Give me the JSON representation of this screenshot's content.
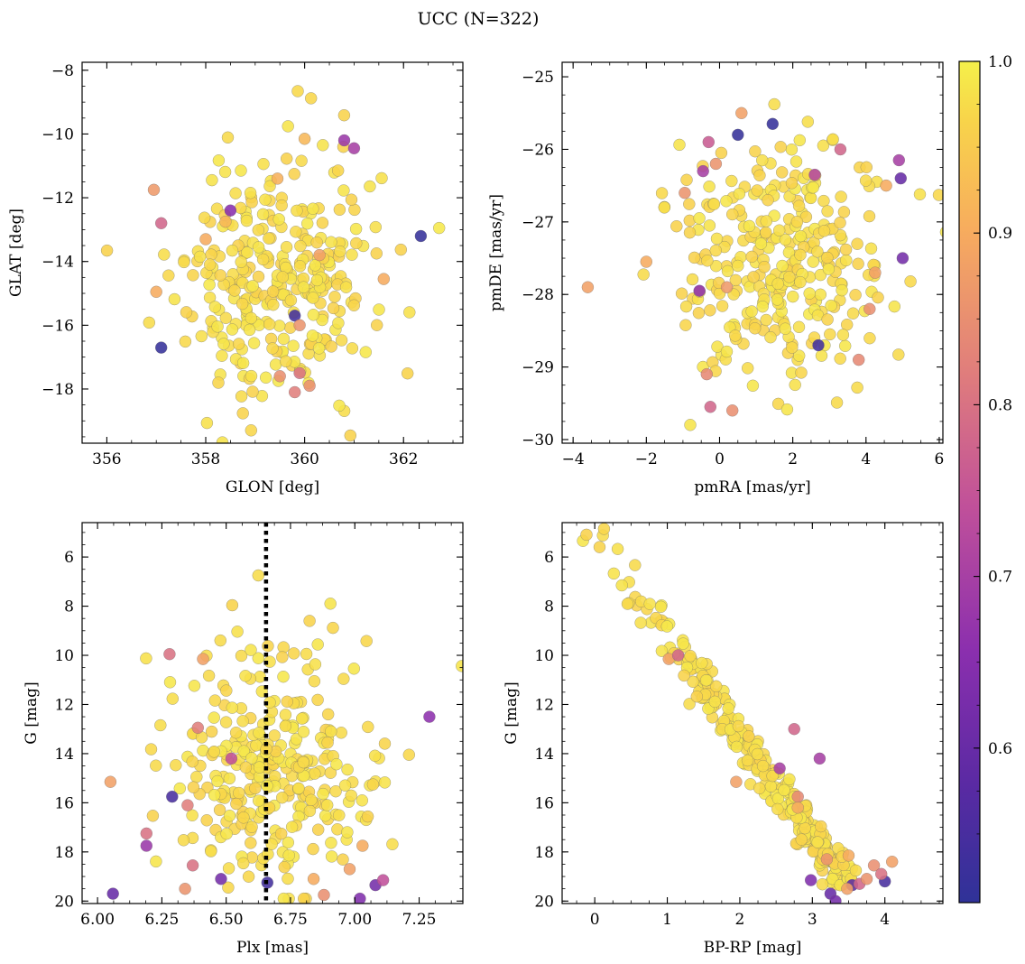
{
  "figure": {
    "title": "UCC (N=322)"
  },
  "colorbar": {
    "colormap": "plasma",
    "range": [
      0.51,
      1.0
    ],
    "ticks": [
      0.6,
      0.7,
      0.8,
      0.9,
      1.0
    ],
    "tick_labels": [
      "0.6",
      "0.7",
      "0.8",
      "0.9",
      "1.0"
    ]
  },
  "chart_data": [
    {
      "type": "scatter",
      "id": "glon-glat",
      "xlabel": "GLON [deg]",
      "ylabel": "GLAT [deg]",
      "xlim": [
        355.5,
        363.2
      ],
      "ylim": [
        -19.7,
        -7.75
      ],
      "y_inverted": false,
      "xticks": [
        356,
        358,
        360,
        362
      ],
      "yticks": [
        -18,
        -16,
        -14,
        -12,
        -10,
        -8
      ],
      "highlight_points": [
        {
          "x": 362.35,
          "y": -13.2,
          "c": 0.52
        },
        {
          "x": 357.1,
          "y": -16.7,
          "c": 0.52
        },
        {
          "x": 359.8,
          "y": -15.7,
          "c": 0.54
        },
        {
          "x": 358.5,
          "y": -12.4,
          "c": 0.65
        },
        {
          "x": 360.8,
          "y": -10.2,
          "c": 0.68
        },
        {
          "x": 361.0,
          "y": -10.45,
          "c": 0.7
        },
        {
          "x": 357.1,
          "y": -12.8,
          "c": 0.78
        },
        {
          "x": 356.95,
          "y": -11.75,
          "c": 0.87
        },
        {
          "x": 357.0,
          "y": -14.95,
          "c": 0.9
        },
        {
          "x": 358.4,
          "y": -12.75,
          "c": 0.92
        },
        {
          "x": 359.45,
          "y": -11.4,
          "c": 0.91
        },
        {
          "x": 360.0,
          "y": -10.15,
          "c": 0.92
        },
        {
          "x": 361.6,
          "y": -14.55,
          "c": 0.9
        },
        {
          "x": 359.5,
          "y": -17.6,
          "c": 0.85
        },
        {
          "x": 359.8,
          "y": -18.1,
          "c": 0.82
        },
        {
          "x": 360.1,
          "y": -17.9,
          "c": 0.85
        },
        {
          "x": 359.9,
          "y": -17.5,
          "c": 0.8
        },
        {
          "x": 360.3,
          "y": -13.8,
          "c": 0.88
        },
        {
          "x": 358.0,
          "y": -13.3,
          "c": 0.9
        },
        {
          "x": 359.9,
          "y": -16.0,
          "c": 0.86
        }
      ],
      "background_points": {
        "count": 302,
        "x_center": 359.5,
        "x_sd": 1.0,
        "y_center": -14.5,
        "y_sd": 2.0,
        "c": 0.99
      }
    },
    {
      "type": "scatter",
      "id": "pmra-pmde",
      "xlabel": "pmRA [mas/yr]",
      "ylabel": "pmDE [mas/yr]",
      "xlim": [
        -4.3,
        6.1
      ],
      "ylim": [
        -30.05,
        -24.8
      ],
      "y_inverted": false,
      "xticks": [
        -4,
        -2,
        0,
        2,
        4,
        6
      ],
      "yticks": [
        -30,
        -29,
        -28,
        -27,
        -26,
        -25
      ],
      "highlight_points": [
        {
          "x": 1.45,
          "y": -25.65,
          "c": 0.52
        },
        {
          "x": 0.5,
          "y": -25.8,
          "c": 0.52
        },
        {
          "x": 2.7,
          "y": -28.7,
          "c": 0.54
        },
        {
          "x": 4.95,
          "y": -26.4,
          "c": 0.6
        },
        {
          "x": 5.0,
          "y": -27.5,
          "c": 0.62
        },
        {
          "x": -0.55,
          "y": -27.95,
          "c": 0.66
        },
        {
          "x": -0.45,
          "y": -26.3,
          "c": 0.7
        },
        {
          "x": 2.6,
          "y": -26.35,
          "c": 0.72
        },
        {
          "x": 4.9,
          "y": -26.15,
          "c": 0.7
        },
        {
          "x": -0.3,
          "y": -25.9,
          "c": 0.76
        },
        {
          "x": 3.3,
          "y": -26.0,
          "c": 0.78
        },
        {
          "x": -0.25,
          "y": -29.55,
          "c": 0.78
        },
        {
          "x": 0.35,
          "y": -29.6,
          "c": 0.85
        },
        {
          "x": -0.35,
          "y": -29.1,
          "c": 0.84
        },
        {
          "x": -3.6,
          "y": -27.9,
          "c": 0.88
        },
        {
          "x": -2.0,
          "y": -27.55,
          "c": 0.9
        },
        {
          "x": -0.95,
          "y": -26.6,
          "c": 0.86
        },
        {
          "x": -0.1,
          "y": -26.2,
          "c": 0.86
        },
        {
          "x": 4.1,
          "y": -28.2,
          "c": 0.85
        },
        {
          "x": 3.8,
          "y": -28.9,
          "c": 0.84
        },
        {
          "x": 0.6,
          "y": -25.5,
          "c": 0.88
        },
        {
          "x": 4.55,
          "y": -26.5,
          "c": 0.9
        },
        {
          "x": 4.25,
          "y": -27.7,
          "c": 0.88
        },
        {
          "x": 0.2,
          "y": -27.9,
          "c": 0.87
        }
      ],
      "background_points": {
        "count": 298,
        "x_center": 1.8,
        "x_sd": 1.45,
        "y_center": -27.5,
        "y_sd": 0.85,
        "c": 0.99
      }
    },
    {
      "type": "scatter",
      "id": "plx-g",
      "xlabel": "Plx [mas]",
      "ylabel": "G [mag]",
      "xlim": [
        5.94,
        7.42
      ],
      "ylim": [
        20.1,
        4.6
      ],
      "y_inverted": true,
      "xticks": [
        6.0,
        6.25,
        6.5,
        6.75,
        7.0,
        7.25
      ],
      "xtick_labels": [
        "6.00",
        "6.25",
        "6.50",
        "6.75",
        "7.00",
        "7.25"
      ],
      "yticks": [
        6,
        8,
        10,
        12,
        14,
        16,
        18,
        20
      ],
      "vline": {
        "x": 6.655,
        "style": "dotted"
      },
      "highlight_points": [
        {
          "x": 6.06,
          "y": 19.7,
          "c": 0.6
        },
        {
          "x": 6.19,
          "y": 17.75,
          "c": 0.68
        },
        {
          "x": 7.29,
          "y": 12.5,
          "c": 0.66
        },
        {
          "x": 6.48,
          "y": 19.1,
          "c": 0.62
        },
        {
          "x": 6.66,
          "y": 19.25,
          "c": 0.54
        },
        {
          "x": 7.08,
          "y": 19.35,
          "c": 0.62
        },
        {
          "x": 7.02,
          "y": 19.9,
          "c": 0.64
        },
        {
          "x": 7.11,
          "y": 19.15,
          "c": 0.74
        },
        {
          "x": 6.28,
          "y": 9.95,
          "c": 0.8
        },
        {
          "x": 6.41,
          "y": 10.15,
          "c": 0.88
        },
        {
          "x": 6.05,
          "y": 15.15,
          "c": 0.88
        },
        {
          "x": 6.19,
          "y": 17.25,
          "c": 0.8
        },
        {
          "x": 6.34,
          "y": 19.5,
          "c": 0.86
        },
        {
          "x": 6.37,
          "y": 18.55,
          "c": 0.8
        },
        {
          "x": 6.88,
          "y": 19.75,
          "c": 0.85
        },
        {
          "x": 6.84,
          "y": 19.1,
          "c": 0.9
        },
        {
          "x": 7.03,
          "y": 17.75,
          "c": 0.9
        },
        {
          "x": 6.39,
          "y": 12.95,
          "c": 0.82
        },
        {
          "x": 6.29,
          "y": 15.75,
          "c": 0.55
        },
        {
          "x": 6.35,
          "y": 16.1,
          "c": 0.82
        },
        {
          "x": 6.52,
          "y": 14.2,
          "c": 0.74
        },
        {
          "x": 6.98,
          "y": 18.7,
          "c": 0.88
        }
      ],
      "background_points": {
        "count": 300,
        "x_center": 6.67,
        "x_sd": 0.2,
        "y_center": 15.0,
        "y_sd": 2.0,
        "c": 0.99
      }
    },
    {
      "type": "scatter",
      "id": "bprp-g",
      "xlabel": "BP-RP [mag]",
      "ylabel": "G [mag]",
      "xlim": [
        -0.45,
        4.8
      ],
      "ylim": [
        20.1,
        4.6
      ],
      "y_inverted": true,
      "xticks": [
        0,
        1,
        2,
        3,
        4
      ],
      "yticks": [
        6,
        8,
        10,
        12,
        14,
        16,
        18,
        20
      ],
      "highlight_points": [
        {
          "x": 3.25,
          "y": 19.7,
          "c": 0.6
        },
        {
          "x": 2.98,
          "y": 19.15,
          "c": 0.64
        },
        {
          "x": 3.32,
          "y": 20.0,
          "c": 0.62
        },
        {
          "x": 3.55,
          "y": 19.35,
          "c": 0.58
        },
        {
          "x": 4.0,
          "y": 19.2,
          "c": 0.55
        },
        {
          "x": 3.65,
          "y": 19.3,
          "c": 0.78
        },
        {
          "x": 1.02,
          "y": 10.15,
          "c": 0.88
        },
        {
          "x": 1.15,
          "y": 10.0,
          "c": 0.78
        },
        {
          "x": 1.95,
          "y": 15.15,
          "c": 0.88
        },
        {
          "x": 2.75,
          "y": 13.0,
          "c": 0.78
        },
        {
          "x": 2.8,
          "y": 15.75,
          "c": 0.84
        },
        {
          "x": 2.55,
          "y": 14.6,
          "c": 0.7
        },
        {
          "x": 3.1,
          "y": 14.2,
          "c": 0.7
        },
        {
          "x": 3.5,
          "y": 18.15,
          "c": 0.9
        },
        {
          "x": 3.85,
          "y": 18.55,
          "c": 0.85
        },
        {
          "x": 3.95,
          "y": 18.9,
          "c": 0.8
        },
        {
          "x": 4.1,
          "y": 18.4,
          "c": 0.88
        },
        {
          "x": 3.48,
          "y": 19.5,
          "c": 0.88
        },
        {
          "x": 3.2,
          "y": 18.3,
          "c": 0.86
        },
        {
          "x": 3.75,
          "y": 19.1,
          "c": 0.86
        },
        {
          "x": 2.8,
          "y": 16.2,
          "c": 0.9
        }
      ],
      "background_points": {
        "count": 301,
        "g_min": 4.8,
        "g_max": 19.2,
        "c": 0.99
      }
    }
  ]
}
